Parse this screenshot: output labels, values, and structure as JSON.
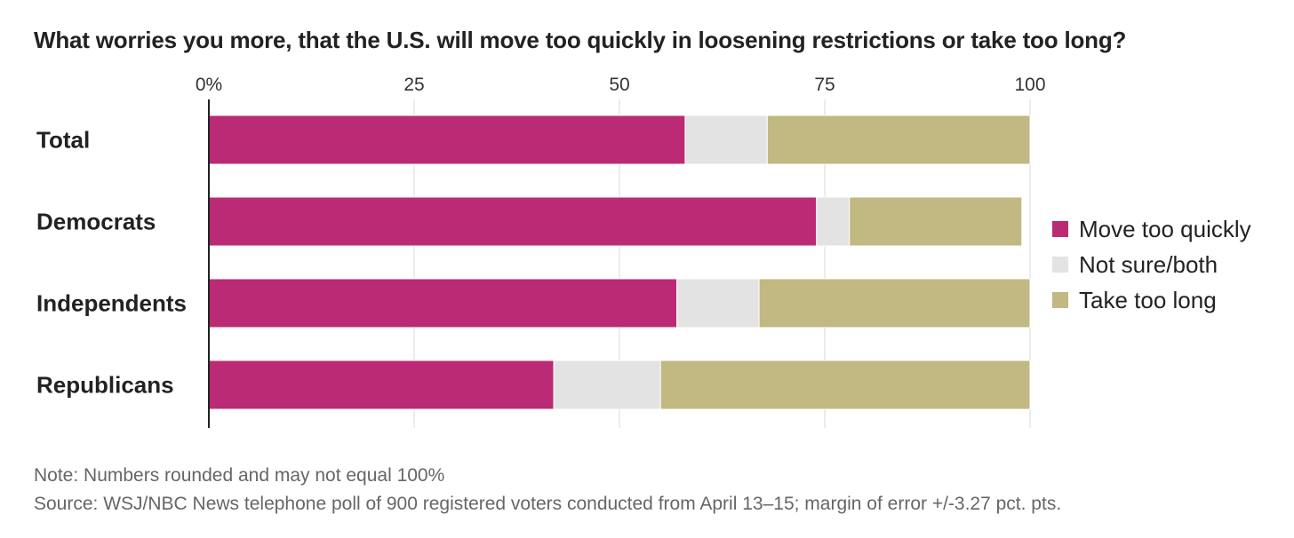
{
  "title": "What worries you more, that the U.S. will move too quickly in loosening restrictions or take too long?",
  "notes": {
    "note": "Note: Numbers rounded and may not equal 100%",
    "source": "Source: WSJ/NBC News telephone poll of 900 registered voters conducted from April 13–15; margin of error +/-3.27 pct. pts."
  },
  "colors": {
    "move_too_quickly": "#bb2a74",
    "not_sure_both": "#e3e3e3",
    "take_too_long": "#c1b882",
    "gridline": "#d9d9d9",
    "axis": "#222222"
  },
  "chart_data": {
    "type": "bar",
    "orientation": "horizontal",
    "stacked": true,
    "categories": [
      "Total",
      "Democrats",
      "Independents",
      "Republicans"
    ],
    "series": [
      {
        "name": "Move too quickly",
        "color_key": "move_too_quickly",
        "values": [
          58,
          74,
          57,
          42
        ]
      },
      {
        "name": "Not sure/both",
        "color_key": "not_sure_both",
        "values": [
          10,
          4,
          10,
          13
        ]
      },
      {
        "name": "Take too long",
        "color_key": "take_too_long",
        "values": [
          32,
          21,
          33,
          45
        ]
      }
    ],
    "xlim": [
      0,
      100
    ],
    "xticks": [
      {
        "value": 0,
        "label": "0%"
      },
      {
        "value": 25,
        "label": "25"
      },
      {
        "value": 50,
        "label": "50"
      },
      {
        "value": 75,
        "label": "75"
      },
      {
        "value": 100,
        "label": "100"
      }
    ],
    "grid": true,
    "legend_position": "right"
  }
}
